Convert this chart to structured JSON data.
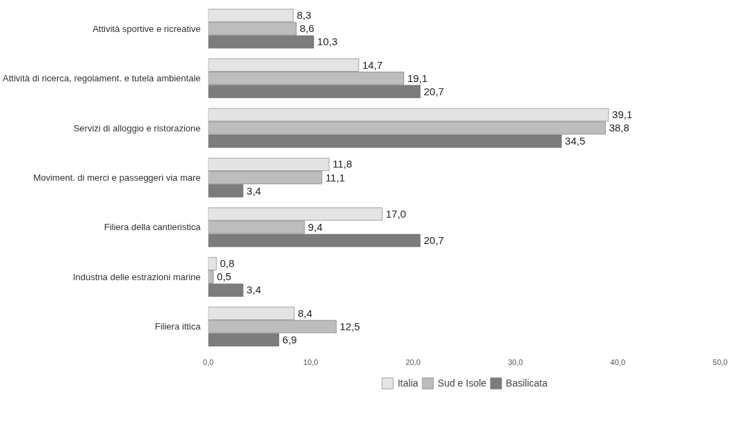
{
  "chart_data": {
    "type": "bar",
    "orientation": "horizontal",
    "categories": [
      "Attività sportive e ricreative",
      "Attività di ricerca, regolament. e tutela ambientale",
      "Servizi di alloggio e ristorazione",
      "Moviment. di merci e passeggeri via mare",
      "Filiera della cantieristica",
      "Industria delle estrazioni marine",
      "Filiera ittica"
    ],
    "series": [
      {
        "name": "Italia",
        "color": "#e4e4e4",
        "values": [
          8.3,
          14.7,
          39.1,
          11.8,
          17.0,
          0.8,
          8.4
        ],
        "value_labels": [
          "8,3",
          "14,7",
          "39,1",
          "11,8",
          "17,0",
          "0,8",
          "8,4"
        ]
      },
      {
        "name": "Sud e Isole",
        "color": "#bdbdbd",
        "values": [
          8.6,
          19.1,
          38.8,
          11.1,
          9.4,
          0.5,
          12.5
        ],
        "value_labels": [
          "8,6",
          "19,1",
          "38,8",
          "11,1",
          "9,4",
          "0,5",
          "12,5"
        ]
      },
      {
        "name": "Basilicata",
        "color": "#7c7c7c",
        "values": [
          10.3,
          20.7,
          34.5,
          3.4,
          20.7,
          3.4,
          6.9
        ],
        "value_labels": [
          "10,3",
          "20,7",
          "34,5",
          "3,4",
          "20,7",
          "3,4",
          "6,9"
        ]
      }
    ],
    "xlim": [
      0,
      50
    ],
    "xticks": [
      {
        "value": 0,
        "label": "0,0"
      },
      {
        "value": 10,
        "label": "10,0"
      },
      {
        "value": 20,
        "label": "20,0"
      },
      {
        "value": 30,
        "label": "30,0"
      },
      {
        "value": 40,
        "label": "40,0"
      },
      {
        "value": 50,
        "label": "50,0"
      }
    ],
    "grid": false,
    "legend": "bottom"
  }
}
